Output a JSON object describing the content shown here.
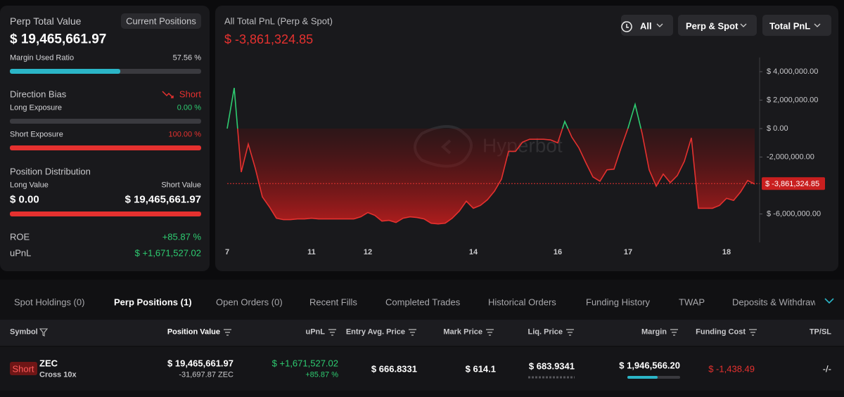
{
  "summary": {
    "title": "Perp Total Value",
    "button": "Current Positions",
    "total_value": "$ 19,465,661.97",
    "margin_used": {
      "label": "Margin Used Ratio",
      "value": 57.56,
      "value_label": "57.56 %"
    },
    "direction_bias": {
      "label": "Direction Bias",
      "value": "Short"
    },
    "long_exposure": {
      "label": "Long Exposure",
      "value": 0,
      "value_label": "0.00 %"
    },
    "short_exposure": {
      "label": "Short Exposure",
      "value": 100,
      "value_label": "100.00 %"
    },
    "distribution": {
      "title": "Position Distribution",
      "long_label": "Long Value",
      "short_label": "Short Value",
      "long_value": 0,
      "long_value_label": "$ 0.00",
      "short_value": 19465661.97,
      "short_value_label": "$ 19,465,661.97"
    },
    "roe": {
      "label": "ROE",
      "value": "+85.87 %"
    },
    "upnl": {
      "label": "uPnL",
      "value": "$ +1,671,527.02"
    }
  },
  "chart_data": {
    "type": "line",
    "title": "All Total PnL (Perp & Spot)",
    "current": {
      "value": -3861324.85,
      "label": "$ -3,861,324.85"
    },
    "filters": [
      "All",
      "Perp & Spot",
      "Total PnL"
    ],
    "watermark": "Hyperbot",
    "categories": [
      "7",
      null,
      null,
      null,
      null,
      null,
      null,
      null,
      null,
      null,
      null,
      null,
      "11",
      null,
      null,
      null,
      null,
      null,
      null,
      null,
      "12",
      null,
      null,
      null,
      null,
      null,
      null,
      null,
      null,
      null,
      null,
      null,
      null,
      null,
      null,
      "14",
      null,
      null,
      null,
      null,
      null,
      null,
      null,
      null,
      null,
      null,
      null,
      "16",
      null,
      null,
      null,
      null,
      null,
      null,
      null,
      null,
      null,
      "17",
      null,
      null,
      null,
      null,
      null,
      null,
      null,
      null,
      null,
      null,
      null,
      null,
      null,
      "18",
      null,
      null,
      null,
      null
    ],
    "series": [
      {
        "color": "#e5312f",
        "values": [
          0,
          2860000,
          -3060000,
          -1090000,
          -2800000,
          -4800000,
          -5500000,
          -6300000,
          -6400000,
          -6400000,
          -6350000,
          -6350000,
          -6300000,
          -6350000,
          -6350000,
          -6350000,
          -6350000,
          -6350000,
          -6350000,
          -6200000,
          -5900000,
          -6100000,
          -6500000,
          -6450000,
          -6600000,
          -6300000,
          -6200000,
          -6250000,
          -6350000,
          -6650000,
          -6700000,
          -6650000,
          -6300000,
          -5800000,
          -5100000,
          -5600000,
          -5400000,
          -5000000,
          -4400000,
          -3550000,
          -1600000,
          -1600000,
          -950000,
          -750000,
          -750000,
          -750000,
          -800000,
          -1000000,
          500000,
          -600000,
          -1350000,
          -2400000,
          -3400000,
          -3700000,
          -2900000,
          -2850000,
          -1350000,
          50000,
          1700000,
          -350000,
          -2900000,
          -4050000,
          -3200000,
          -3800000,
          -3300000,
          -2300000,
          -650000,
          -5600000,
          -5600000,
          -5600000,
          -5400000,
          -4900000,
          -5050000,
          -4450000,
          -3650000,
          -3900000
        ]
      }
    ],
    "positive_color": "#2ecc71",
    "ylim": [
      -8000000,
      5000000
    ],
    "yticks": [
      {
        "value": 4000000,
        "label": "$ 4,000,000.00"
      },
      {
        "value": 2000000,
        "label": "$ 2,000,000.00"
      },
      {
        "value": 0,
        "label": "$ 0.00"
      },
      {
        "value": -2000000,
        "label": "-2,000,000.00"
      },
      {
        "value": -6000000,
        "label": "$ -6,000,000.00"
      }
    ]
  },
  "tabs": [
    "Spot Holdings (0)",
    "Perp Positions (1)",
    "Open Orders (0)",
    "Recent Fills",
    "Completed Trades",
    "Historical Orders",
    "Funding History",
    "TWAP",
    "Deposits & Withdraw"
  ],
  "table": {
    "columns": [
      "Symbol",
      "Position Value",
      "uPnL",
      "Entry Avg. Price",
      "Mark Price",
      "Liq. Price",
      "Margin",
      "Funding Cost",
      "TP/SL"
    ],
    "rows": [
      {
        "side": "Short",
        "symbol": "ZEC",
        "mode": "Cross 10x",
        "position_value": "$ 19,465,661.97",
        "size": "-31,697.87 ZEC",
        "upnl": "$ +1,671,527.02",
        "upnl_pct": "+85.87 %",
        "entry": "$ 666.8331",
        "mark": "$ 614.1",
        "liq": "$ 683.9341",
        "margin": "$ 1,946,566.20",
        "funding": "$ -1,438.49",
        "tpsl": "-/-"
      }
    ]
  }
}
